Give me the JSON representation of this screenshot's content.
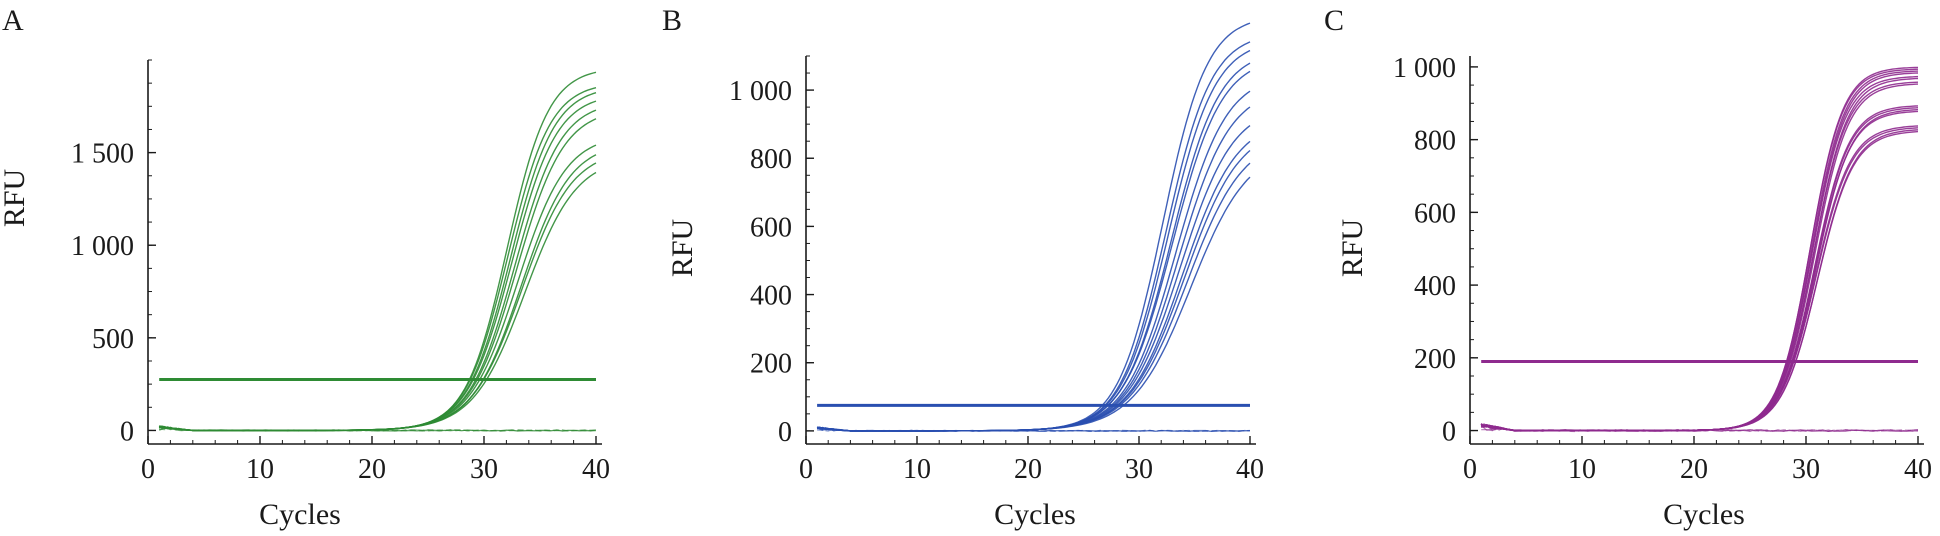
{
  "chart_data": [
    {
      "panel": "A",
      "type": "line",
      "color": "#2e8b34",
      "xlabel": "Cycles",
      "ylabel": "RFU",
      "xlim": [
        0,
        40
      ],
      "ylim": [
        -30,
        2000
      ],
      "x_ticks": [
        0,
        10,
        20,
        30,
        40
      ],
      "x_tick_labels": [
        "0",
        "10",
        "20",
        "30",
        "40"
      ],
      "y_ticks": [
        0,
        500,
        1000,
        1500
      ],
      "y_tick_labels": [
        "0",
        "500",
        "1 000",
        "1 500"
      ],
      "threshold": 275,
      "baseline_noise": 25,
      "curve_model": {
        "cycles": [
          1,
          40
        ],
        "midpoint_range": [
          32.0,
          33.6
        ],
        "slope_range": [
          1.85,
          2.3
        ]
      },
      "plateaus": [
        1960,
        1880,
        1860,
        1820,
        1780,
        1740,
        1600,
        1560,
        1520,
        1480
      ]
    },
    {
      "panel": "B",
      "type": "line",
      "color": "#2a4fb0",
      "xlabel": "Cycles",
      "ylabel": "RFU",
      "xlim": [
        0,
        40
      ],
      "ylim": [
        -15,
        1100
      ],
      "x_ticks": [
        0,
        10,
        20,
        30,
        40
      ],
      "x_tick_labels": [
        "0",
        "10",
        "20",
        "30",
        "40"
      ],
      "y_ticks": [
        0,
        200,
        400,
        600,
        800,
        1000
      ],
      "y_tick_labels": [
        "0",
        "200",
        "400",
        "600",
        "800",
        "1 000"
      ],
      "threshold": 75,
      "baseline_noise": 12,
      "curve_model": {
        "cycles": [
          1,
          40
        ],
        "midpoint_range": [
          32.2,
          34.6
        ],
        "slope_range": [
          2.0,
          2.6
        ]
      },
      "plateaus": [
        1220,
        1170,
        1150,
        1120,
        1100,
        1050,
        1010,
        960,
        920,
        900,
        870,
        840
      ]
    },
    {
      "panel": "C",
      "type": "line",
      "color": "#8e2a8e",
      "xlabel": "Cycles",
      "ylabel": "RFU",
      "xlim": [
        0,
        40
      ],
      "ylim": [
        -15,
        1030
      ],
      "x_ticks": [
        0,
        10,
        20,
        30,
        40
      ],
      "x_tick_labels": [
        "0",
        "10",
        "20",
        "30",
        "40"
      ],
      "y_ticks": [
        0,
        200,
        400,
        600,
        800,
        1000
      ],
      "y_tick_labels": [
        "0",
        "200",
        "400",
        "600",
        "800",
        "1 000"
      ],
      "threshold": 190,
      "baseline_noise": 20,
      "curve_model": {
        "cycles": [
          1,
          40
        ],
        "midpoint_range": [
          30.4,
          31.0
        ],
        "slope_range": [
          1.45,
          1.6
        ]
      },
      "plateaus": [
        1000,
        995,
        990,
        985,
        975,
        970,
        960,
        955,
        895,
        890,
        885,
        880,
        840,
        835,
        830,
        825
      ]
    }
  ]
}
